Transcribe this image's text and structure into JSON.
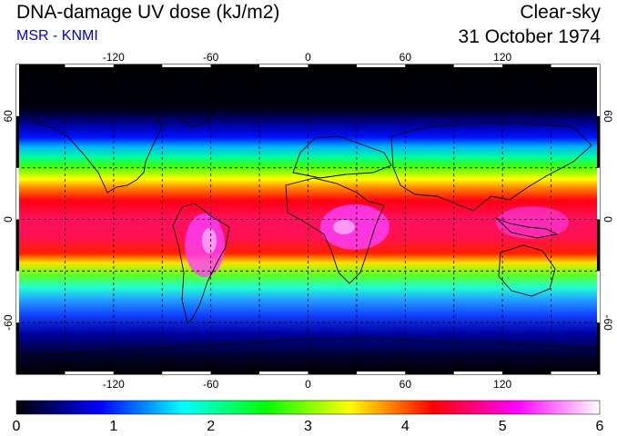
{
  "header": {
    "title": "DNA-damage UV dose (kJ/m2)",
    "source": "MSR - KNMI",
    "condition": "Clear-sky",
    "date": "31 October 1974"
  },
  "map": {
    "lon_range": [
      -180,
      180
    ],
    "lat_range": [
      -90,
      90
    ],
    "grid": true,
    "lon_ticks": [
      -120,
      -60,
      0,
      60,
      120
    ],
    "lat_ticks": [
      -60,
      0,
      60
    ],
    "lon_tick_labels": [
      "-120",
      "-60",
      "0",
      "60",
      "120"
    ],
    "lat_tick_labels": [
      "-60",
      "0",
      "60"
    ]
  },
  "colorbar": {
    "min": 0,
    "max": 6,
    "tick_labels": [
      "0",
      "1",
      "2",
      "3",
      "4",
      "5",
      "6"
    ],
    "colors": [
      "#000000",
      "#0000ff",
      "#00ffff",
      "#00ff00",
      "#ffff00",
      "#ff0000",
      "#ff00ff",
      "#ffffff"
    ]
  }
}
